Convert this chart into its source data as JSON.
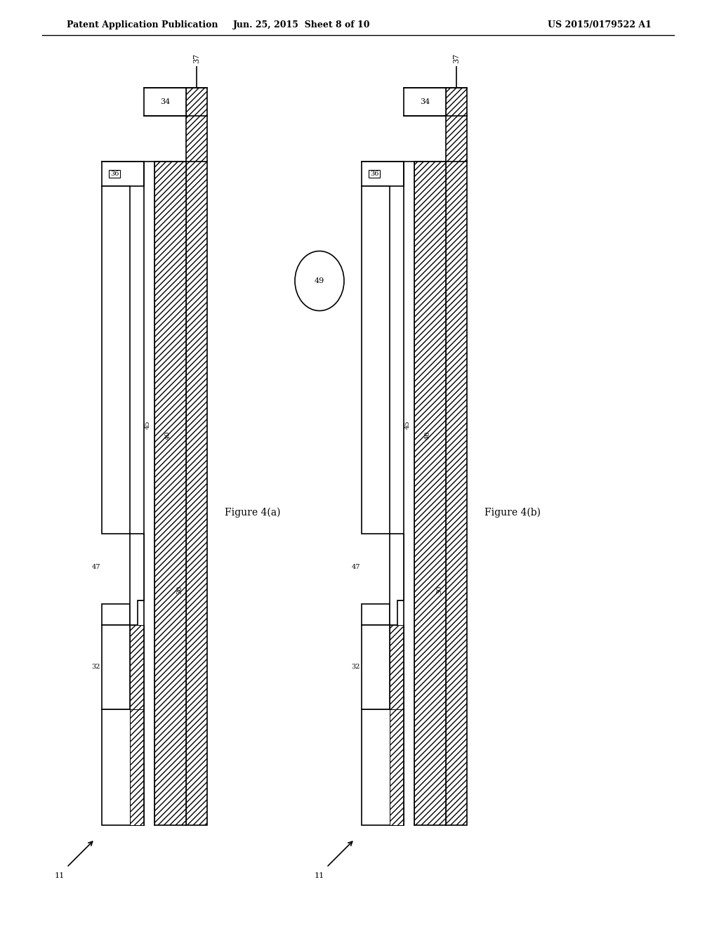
{
  "header_left": "Patent Application Publication",
  "header_center": "Jun. 25, 2015  Sheet 8 of 10",
  "header_right": "US 2015/0179522 A1",
  "fig_a_label": "Figure 4(a)",
  "fig_b_label": "Figure 4(b)",
  "bg_color": "#ffffff",
  "line_color": "#000000"
}
